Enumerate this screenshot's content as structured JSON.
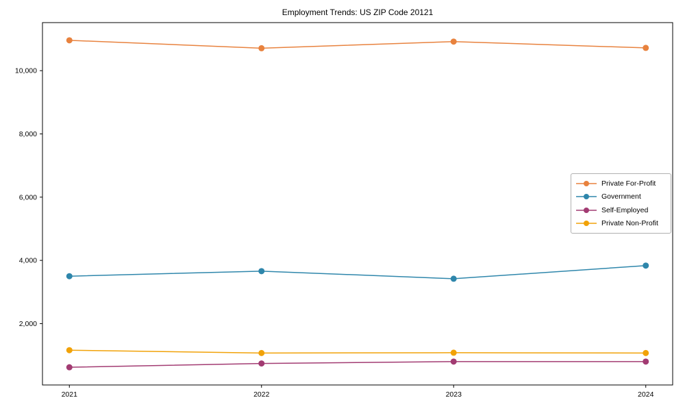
{
  "chart_data": {
    "type": "line",
    "title": "Employment Trends: US ZIP Code 20121",
    "xlabel": "",
    "ylabel": "",
    "x": [
      2021,
      2022,
      2023,
      2024
    ],
    "x_tick_labels": [
      "2021",
      "2022",
      "2023",
      "2024"
    ],
    "y_ticks": [
      2000,
      4000,
      6000,
      8000,
      10000
    ],
    "y_tick_labels": [
      "2,000",
      "4,000",
      "6,000",
      "8,000",
      "10,000"
    ],
    "xlim": [
      2020.86,
      2024.14
    ],
    "ylim": [
      60,
      11520
    ],
    "grid": false,
    "legend": {
      "position": "center-right",
      "border_color": "#b0b0b0"
    },
    "series": [
      {
        "name": "Private For-Profit",
        "color": "#E8823E",
        "values": [
          10960,
          10710,
          10920,
          10720
        ]
      },
      {
        "name": "Government",
        "color": "#2E86AB",
        "values": [
          3500,
          3660,
          3420,
          3835
        ]
      },
      {
        "name": "Self-Employed",
        "color": "#A23B72",
        "values": [
          620,
          740,
          800,
          800
        ]
      },
      {
        "name": "Private Non-Profit",
        "color": "#F1A208",
        "values": [
          1160,
          1070,
          1080,
          1070
        ]
      }
    ],
    "frame_color": "#000000",
    "background_color": "#ffffff"
  }
}
